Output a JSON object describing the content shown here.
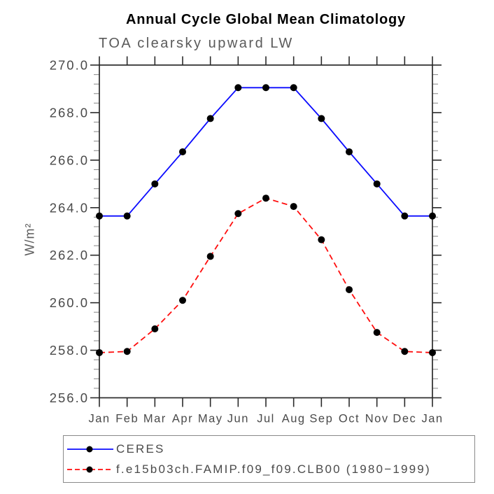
{
  "title": "Annual Cycle Global Mean Climatology",
  "subtitle": "TOA clearsky upward LW",
  "y_axis_title": "W/m²",
  "colors": {
    "ceres_line": "#0b0bff",
    "model_line": "#ff0d0d",
    "marker": "#000000",
    "axis": "#2a2a2a",
    "minor_tick": "#909090",
    "label_text": "#4a4a4a"
  },
  "chart_data": {
    "type": "line",
    "x_categories": [
      "Jan",
      "Feb",
      "Mar",
      "Apr",
      "May",
      "Jun",
      "Jul",
      "Aug",
      "Sep",
      "Oct",
      "Nov",
      "Dec",
      "Jan"
    ],
    "series": [
      {
        "name": "CERES",
        "color": "#0b0bff",
        "style": "solid",
        "marker": "circle",
        "values": [
          263.65,
          263.65,
          265.0,
          266.35,
          267.75,
          269.05,
          269.05,
          269.05,
          267.75,
          266.35,
          265.0,
          263.65,
          263.65
        ]
      },
      {
        "name": "f.e15b03ch.FAMIP.f09_f09.CLB00 (1980−1999)",
        "color": "#ff0d0d",
        "style": "dashed",
        "marker": "circle",
        "values": [
          257.9,
          257.95,
          258.9,
          260.1,
          261.95,
          263.75,
          264.4,
          264.05,
          262.65,
          260.55,
          258.75,
          257.95,
          257.9
        ]
      }
    ],
    "title": "Annual Cycle Global Mean Climatology",
    "subtitle": "TOA clearsky upward LW",
    "xlabel": "",
    "ylabel": "W/m²",
    "ylim": [
      256.0,
      270.0
    ],
    "y_major_step": 2.0,
    "y_minor_step": 0.4,
    "ytick_labels": [
      "256.0",
      "258.0",
      "260.0",
      "262.0",
      "264.0",
      "266.0",
      "268.0",
      "270.0"
    ],
    "grid": "off",
    "legend_position": "below"
  }
}
